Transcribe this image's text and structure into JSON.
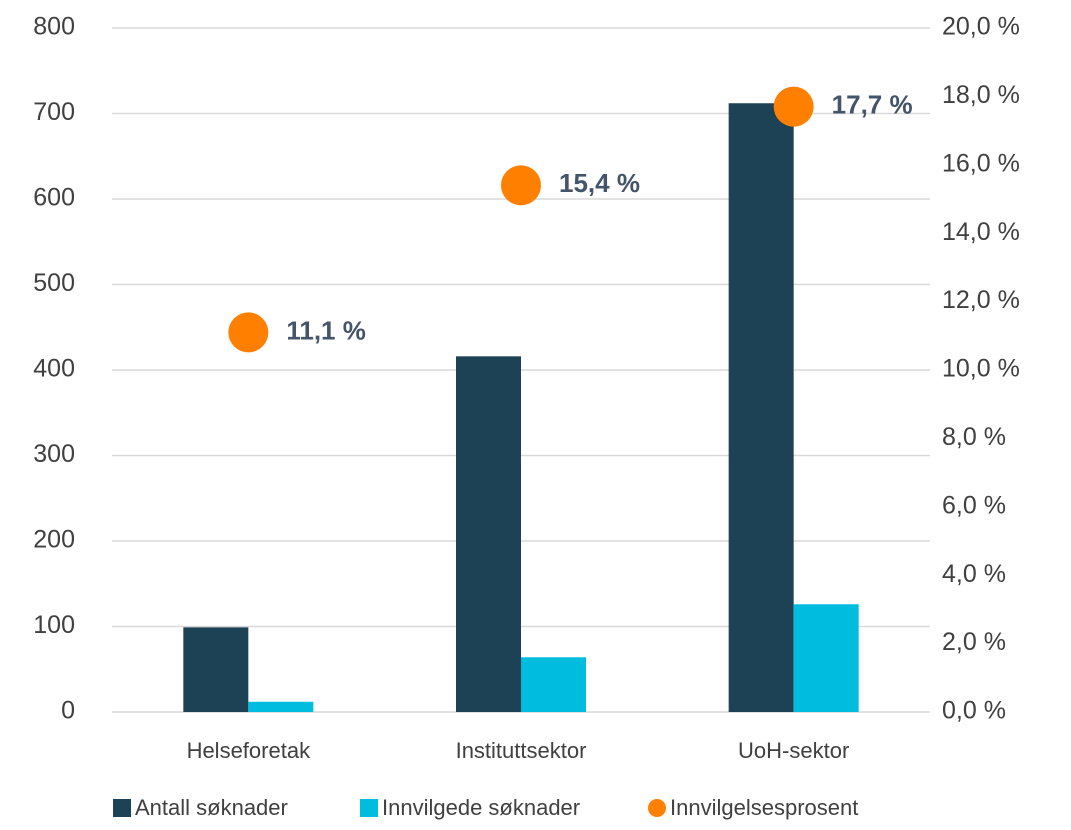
{
  "chart_data": {
    "type": "bar",
    "categories": [
      "Helseforetak",
      "Instituttsektor",
      "UoH-sektor"
    ],
    "series": [
      {
        "name": "Antall søknader",
        "color": "#1d4155",
        "values": [
          99,
          416,
          712
        ]
      },
      {
        "name": "Innvilgede søknader",
        "color": "#00bde0",
        "values": [
          12,
          64,
          126
        ]
      },
      {
        "name": "Innvilgelsesprosent",
        "color": "#ff8000",
        "type": "scatter",
        "axis": "y2",
        "values": [
          11.1,
          15.4,
          17.7
        ],
        "value_labels": [
          "11,1 %",
          "15,4 %",
          "17,7 %"
        ]
      }
    ],
    "ylim": [
      0,
      800
    ],
    "yticks": [
      0,
      100,
      200,
      300,
      400,
      500,
      600,
      700,
      800
    ],
    "y2lim": [
      0,
      20
    ],
    "y2ticks": [
      {
        "value": 0,
        "label": "0,0 %"
      },
      {
        "value": 2,
        "label": "2,0 %"
      },
      {
        "value": 4,
        "label": "4,0 %"
      },
      {
        "value": 6,
        "label": "6,0 %"
      },
      {
        "value": 8,
        "label": "8,0 %"
      },
      {
        "value": 10,
        "label": "10,0 %"
      },
      {
        "value": 12,
        "label": "12,0 %"
      },
      {
        "value": 14,
        "label": "14,0 %"
      },
      {
        "value": 16,
        "label": "16,0 %"
      },
      {
        "value": 18,
        "label": "18,0 %"
      },
      {
        "value": 20,
        "label": "20,0 %"
      }
    ],
    "grid": true,
    "legend": "bottom"
  }
}
